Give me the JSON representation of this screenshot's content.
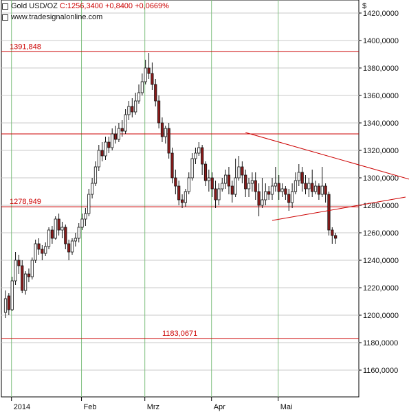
{
  "header": {
    "instrument": "Gold USD/OZ",
    "close_text": "C:1256,3400 +0,8400 +0,0669%",
    "source": "www.tradesignalonline.com",
    "currency_symbol": "$"
  },
  "colors": {
    "up": "#ffffff",
    "down": "#8b1a1a",
    "wick": "#111111",
    "level_line": "#cc0000",
    "triangle": "#cc0000",
    "grid": "#c8c8c8",
    "month_divider": "#7fbf7f"
  },
  "chart_data": {
    "type": "candlestick",
    "title": "Gold USD/OZ",
    "x_labels": [
      "2014",
      "Feb",
      "Mrz",
      "Apr",
      "Mai"
    ],
    "y_ticks": [
      "1160,0000",
      "1180,0000",
      "1200,0000",
      "1220,0000",
      "1240,0000",
      "1260,0000",
      "1280,0000",
      "1300,0000",
      "1320,0000",
      "1340,0000",
      "1360,0000",
      "1380,0000",
      "1400,0000",
      "1420,0000"
    ],
    "ylim": [
      1140,
      1430
    ],
    "grid": true,
    "levels": [
      {
        "value": 1391.848,
        "label": "1391,848"
      },
      {
        "value": 1332.0,
        "label": ""
      },
      {
        "value": 1278.949,
        "label": "1278,949"
      },
      {
        "value": 1183.0671,
        "label": "1183,0671"
      }
    ],
    "triangle_lines": [
      {
        "from": [
          72,
          1333
        ],
        "to": [
          124,
          1297
        ]
      },
      {
        "from": [
          80,
          1269
        ],
        "to": [
          120,
          1286
        ]
      }
    ],
    "candles": [
      [
        1202,
        1212,
        1218,
        1198
      ],
      [
        1214,
        1204,
        1216,
        1200
      ],
      [
        1204,
        1225,
        1228,
        1203
      ],
      [
        1225,
        1240,
        1246,
        1222
      ],
      [
        1240,
        1236,
        1244,
        1230
      ],
      [
        1236,
        1218,
        1240,
        1216
      ],
      [
        1218,
        1230,
        1232,
        1215
      ],
      [
        1230,
        1228,
        1234,
        1224
      ],
      [
        1228,
        1240,
        1242,
        1226
      ],
      [
        1240,
        1252,
        1255,
        1238
      ],
      [
        1252,
        1248,
        1256,
        1244
      ],
      [
        1248,
        1245,
        1251,
        1240
      ],
      [
        1245,
        1250,
        1253,
        1243
      ],
      [
        1250,
        1262,
        1264,
        1248
      ],
      [
        1262,
        1256,
        1265,
        1252
      ],
      [
        1256,
        1270,
        1272,
        1255
      ],
      [
        1270,
        1262,
        1274,
        1258
      ],
      [
        1262,
        1264,
        1268,
        1256
      ],
      [
        1264,
        1252,
        1266,
        1248
      ],
      [
        1252,
        1246,
        1255,
        1240
      ],
      [
        1246,
        1254,
        1256,
        1244
      ],
      [
        1254,
        1256,
        1260,
        1250
      ],
      [
        1256,
        1264,
        1267,
        1253
      ],
      [
        1264,
        1270,
        1274,
        1262
      ],
      [
        1270,
        1274,
        1278,
        1265
      ],
      [
        1274,
        1288,
        1292,
        1272
      ],
      [
        1288,
        1296,
        1300,
        1285
      ],
      [
        1296,
        1308,
        1312,
        1294
      ],
      [
        1308,
        1320,
        1324,
        1305
      ],
      [
        1320,
        1316,
        1326,
        1312
      ],
      [
        1316,
        1326,
        1330,
        1313
      ],
      [
        1326,
        1322,
        1330,
        1318
      ],
      [
        1322,
        1332,
        1336,
        1320
      ],
      [
        1332,
        1328,
        1338,
        1325
      ],
      [
        1328,
        1336,
        1340,
        1326
      ],
      [
        1336,
        1334,
        1342,
        1330
      ],
      [
        1334,
        1346,
        1350,
        1332
      ],
      [
        1346,
        1352,
        1356,
        1342
      ],
      [
        1352,
        1348,
        1358,
        1344
      ],
      [
        1348,
        1356,
        1362,
        1346
      ],
      [
        1356,
        1362,
        1368,
        1354
      ],
      [
        1362,
        1370,
        1376,
        1360
      ],
      [
        1370,
        1380,
        1386,
        1368
      ],
      [
        1380,
        1376,
        1391,
        1372
      ],
      [
        1376,
        1368,
        1384,
        1364
      ],
      [
        1368,
        1356,
        1372,
        1352
      ],
      [
        1356,
        1340,
        1360,
        1336
      ],
      [
        1340,
        1330,
        1344,
        1326
      ],
      [
        1330,
        1336,
        1338,
        1325
      ],
      [
        1336,
        1318,
        1340,
        1314
      ],
      [
        1318,
        1300,
        1322,
        1296
      ],
      [
        1300,
        1294,
        1306,
        1288
      ],
      [
        1294,
        1284,
        1298,
        1280
      ],
      [
        1284,
        1282,
        1288,
        1278
      ],
      [
        1282,
        1290,
        1292,
        1279
      ],
      [
        1290,
        1300,
        1304,
        1288
      ],
      [
        1300,
        1314,
        1318,
        1298
      ],
      [
        1314,
        1318,
        1322,
        1310
      ],
      [
        1318,
        1322,
        1326,
        1316
      ],
      [
        1322,
        1310,
        1324,
        1302
      ],
      [
        1310,
        1298,
        1312,
        1294
      ],
      [
        1298,
        1300,
        1306,
        1290
      ],
      [
        1300,
        1292,
        1304,
        1286
      ],
      [
        1292,
        1284,
        1298,
        1278
      ],
      [
        1284,
        1292,
        1296,
        1280
      ],
      [
        1292,
        1296,
        1300,
        1290
      ],
      [
        1296,
        1302,
        1306,
        1292
      ],
      [
        1302,
        1294,
        1308,
        1288
      ],
      [
        1294,
        1288,
        1298,
        1282
      ],
      [
        1288,
        1300,
        1314,
        1286
      ],
      [
        1300,
        1308,
        1316,
        1298
      ],
      [
        1308,
        1302,
        1312,
        1296
      ],
      [
        1302,
        1292,
        1306,
        1286
      ],
      [
        1292,
        1296,
        1300,
        1286
      ],
      [
        1296,
        1298,
        1304,
        1290
      ],
      [
        1298,
        1290,
        1304,
        1284
      ],
      [
        1290,
        1280,
        1296,
        1272
      ],
      [
        1280,
        1284,
        1300,
        1278
      ],
      [
        1284,
        1290,
        1296,
        1280
      ],
      [
        1290,
        1288,
        1294,
        1284
      ],
      [
        1288,
        1294,
        1300,
        1284
      ],
      [
        1294,
        1296,
        1308,
        1290
      ],
      [
        1296,
        1290,
        1302,
        1284
      ],
      [
        1290,
        1292,
        1296,
        1286
      ],
      [
        1292,
        1288,
        1294,
        1284
      ],
      [
        1288,
        1282,
        1292,
        1276
      ],
      [
        1282,
        1290,
        1296,
        1278
      ],
      [
        1290,
        1298,
        1304,
        1288
      ],
      [
        1298,
        1304,
        1310,
        1294
      ],
      [
        1304,
        1296,
        1308,
        1290
      ],
      [
        1296,
        1292,
        1302,
        1288
      ],
      [
        1292,
        1296,
        1300,
        1286
      ],
      [
        1296,
        1290,
        1306,
        1286
      ],
      [
        1290,
        1294,
        1298,
        1288
      ],
      [
        1294,
        1288,
        1296,
        1284
      ],
      [
        1288,
        1294,
        1308,
        1286
      ],
      [
        1294,
        1288,
        1296,
        1282
      ],
      [
        1288,
        1262,
        1290,
        1258
      ],
      [
        1262,
        1258,
        1264,
        1252
      ],
      [
        1258,
        1256,
        1260,
        1252
      ]
    ]
  }
}
